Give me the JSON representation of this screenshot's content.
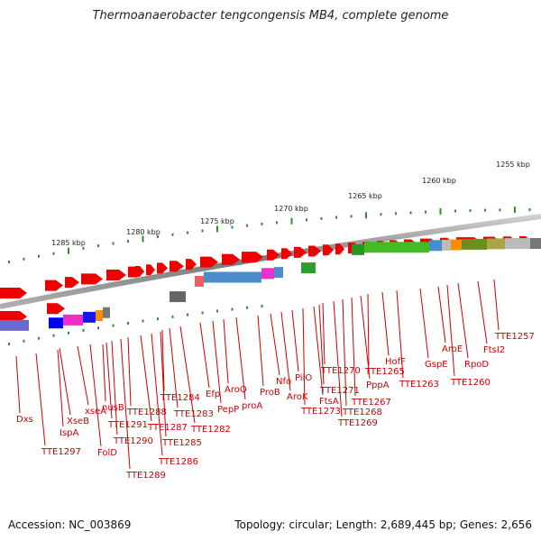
{
  "title": "Thermoanaerobacter tengcongensis MB4, complete genome",
  "accession": "Accession: NC_003869",
  "summary": "Topology: circular; Length: 2,689,445 bp; Genes: 2,656",
  "colors": {
    "backbone": "#8a8a8a",
    "gene_arrow": "#ee0000",
    "tick": "#2f8f2f",
    "label_line": "#cc0000",
    "label_text": "#cc0000"
  },
  "scale_labels": [
    "1285 kbp",
    "1280 kbp",
    "1275 kbp",
    "1270 kbp",
    "1265 kbp",
    "1260 kbp",
    "1255 kbp"
  ],
  "gene_labels": [
    "Dxs",
    "TTE1297",
    "XseB",
    "IspA",
    "xseA",
    "FolD",
    "nusB",
    "TTE1291",
    "TTE1290",
    "TTE1289",
    "TTE1288",
    "TTE1287",
    "TTE1286",
    "TTE1285",
    "TTE1284",
    "TTE1283",
    "TTE1282",
    "Efp",
    "PepP",
    "AroQ",
    "proA",
    "ProB",
    "Nfo",
    "AroK",
    "PilO",
    "TTE1273",
    "FtsA",
    "TTE1271",
    "TTE1270",
    "TTE1269",
    "TTE1268",
    "TTE1267",
    "PppA",
    "TTE1265",
    "HofF",
    "TTE1263",
    "GspE",
    "AroE",
    "TTE1260",
    "RpoD",
    "FtsI2",
    "TTE1257"
  ]
}
